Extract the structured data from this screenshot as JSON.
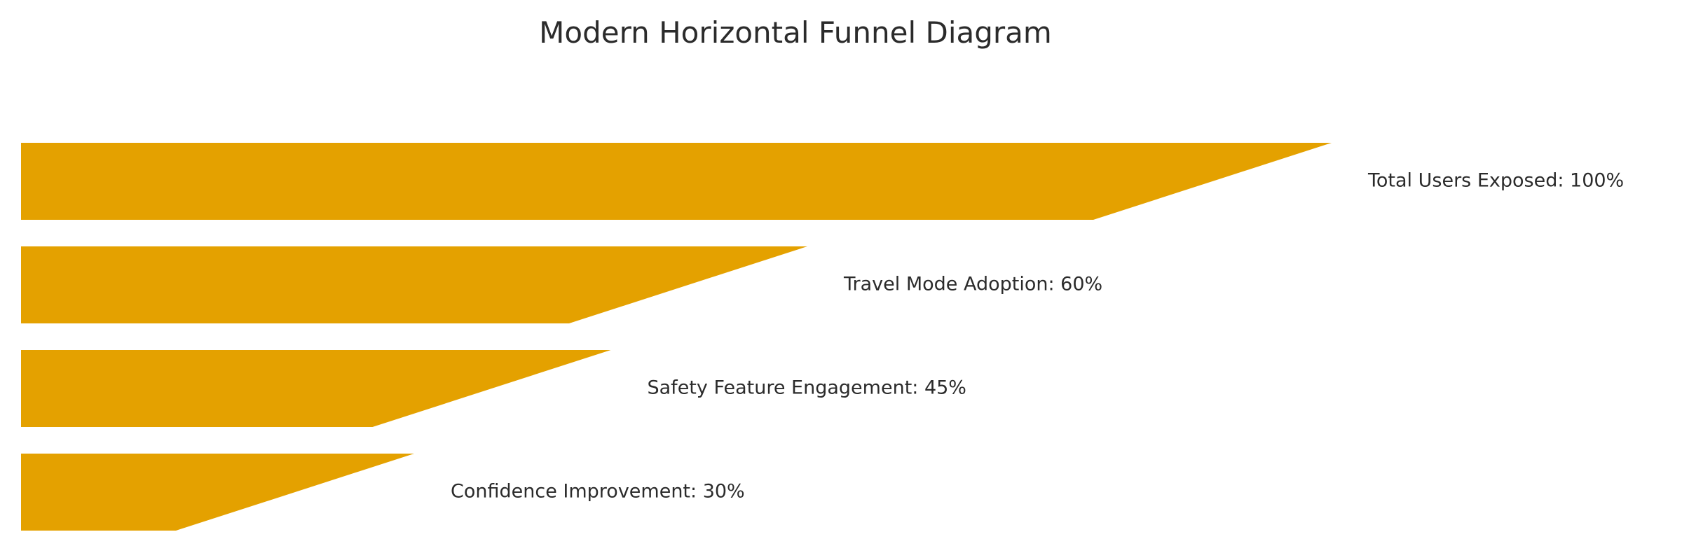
{
  "chart_data": {
    "type": "bar",
    "title": "Modern Horizontal Funnel Diagram",
    "categories": [
      "Total Users Exposed",
      "Travel Mode Adoption",
      "Safety Feature Engagement",
      "Confidence Improvement"
    ],
    "values": [
      100,
      60,
      45,
      30
    ],
    "unit": "%",
    "labels": [
      "Total Users Exposed: 100%",
      "Travel Mode Adoption: 60%",
      "Safety Feature Engagement: 45%",
      "Confidence Improvement: 30%"
    ],
    "xlabel": "",
    "ylabel": "",
    "grid": false,
    "axes_visible": false,
    "color": "#e4a100"
  }
}
